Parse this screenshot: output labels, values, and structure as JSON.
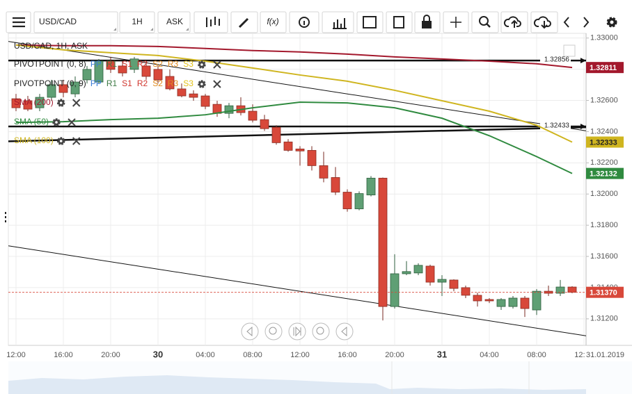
{
  "toolbar": {
    "symbol": "USD/CAD",
    "interval": "1H",
    "price_side": "ASK",
    "function": "f(x)"
  },
  "chart_data": {
    "type": "candlestick",
    "title": "USD/CAD, 1H, ASK",
    "categories": [
      "12:00",
      null,
      null,
      null,
      "16:00",
      null,
      null,
      null,
      "20:00",
      null,
      null,
      null,
      "30",
      null,
      null,
      null,
      "04:00",
      null,
      null,
      null,
      "08:00",
      null,
      null,
      null,
      "12:00",
      null,
      null,
      null,
      "16:00",
      null,
      null,
      null,
      "20:00",
      null,
      null,
      null,
      "31",
      null,
      null,
      null,
      "04:00",
      null,
      null,
      null,
      "08:00",
      null,
      null,
      null,
      "12:00"
    ],
    "open": [
      1.32611,
      1.32598,
      1.32553,
      1.3262,
      1.32701,
      1.32642,
      1.32732,
      1.32718,
      1.32852,
      1.32821,
      1.32799,
      1.32821,
      1.32799,
      1.32754,
      1.32674,
      1.32642,
      1.32629,
      1.32575,
      1.32517,
      1.32566,
      1.32531,
      1.32477,
      1.32428,
      1.32334,
      1.32289,
      1.3228,
      1.32182,
      1.32106,
      1.32012,
      1.31905,
      1.31994,
      1.32102,
      1.31279,
      1.31489,
      1.31494,
      1.31538,
      1.31435,
      1.31449,
      1.314,
      1.31351,
      1.31324,
      1.31279,
      1.31279,
      1.31333,
      1.31257,
      1.31377,
      1.31364,
      1.31404,
      null
    ],
    "high": [
      1.32642,
      1.32629,
      1.32642,
      1.32732,
      1.32732,
      1.32754,
      1.32821,
      1.32866,
      1.32879,
      1.32852,
      1.32879,
      1.32852,
      1.32821,
      1.32799,
      1.32709,
      1.32665,
      1.32642,
      1.32598,
      1.32584,
      1.3262,
      1.32575,
      1.32508,
      1.32441,
      1.32352,
      1.32307,
      1.32307,
      1.32271,
      1.32173,
      1.3203,
      1.32017,
      1.32115,
      1.32106,
      1.31614,
      1.3157,
      1.31556,
      1.31547,
      1.3148,
      1.31453,
      1.31413,
      1.31368,
      1.31333,
      1.31333,
      1.31346,
      1.31346,
      1.31391,
      1.31413,
      1.31449,
      1.31409,
      null
    ],
    "low": [
      1.32531,
      1.32531,
      1.32531,
      1.32598,
      1.3262,
      1.3262,
      1.32709,
      1.32709,
      1.32776,
      1.32754,
      1.32776,
      1.32732,
      1.32709,
      1.32665,
      1.3262,
      1.32598,
      1.32544,
      1.32495,
      1.32486,
      1.32504,
      1.32459,
      1.32405,
      1.32316,
      1.32271,
      1.32182,
      1.32151,
      1.32075,
      1.31994,
      1.31887,
      1.31896,
      1.31985,
      1.3119,
      1.31266,
      1.3148,
      1.3148,
      1.31413,
      1.31346,
      1.31377,
      1.31333,
      1.31279,
      1.31301,
      1.31257,
      1.31266,
      1.31212,
      1.31225,
      1.31346,
      1.31346,
      1.31364,
      null
    ],
    "close": [
      1.32553,
      1.32544,
      1.3262,
      1.32701,
      1.32651,
      1.32718,
      1.32799,
      1.32852,
      1.32799,
      1.32776,
      1.32866,
      1.32754,
      1.32732,
      1.32674,
      1.32629,
      1.3262,
      1.32562,
      1.32517,
      1.32566,
      1.32522,
      1.32473,
      1.32419,
      1.32329,
      1.3228,
      1.32276,
      1.32182,
      1.32102,
      1.32012,
      1.31905,
      1.32003,
      1.32102,
      1.31279,
      1.31489,
      1.31503,
      1.31543,
      1.31435,
      1.31453,
      1.31395,
      1.31351,
      1.31315,
      1.31315,
      1.31324,
      1.31333,
      1.31266,
      1.31377,
      1.31364,
      1.31404,
      1.3137,
      null
    ],
    "up_color": "#5f9f74",
    "down_color": "#d8483a",
    "ylim": [
      1.3103,
      1.3303
    ],
    "yticks": [
      {
        "value": 1.33,
        "label": "1.33000"
      },
      {
        "value": 1.328,
        "label": "1.32800"
      },
      {
        "value": 1.326,
        "label": "1.32600"
      },
      {
        "value": 1.324,
        "label": "1.32400"
      },
      {
        "value": 1.322,
        "label": "1.32200"
      },
      {
        "value": 1.32,
        "label": "1.32000"
      },
      {
        "value": 1.318,
        "label": "1.31800"
      },
      {
        "value": 1.316,
        "label": "1.31600"
      },
      {
        "value": 1.314,
        "label": "1.31400"
      },
      {
        "value": 1.312,
        "label": "1.31200"
      }
    ],
    "grid": true,
    "series": [
      {
        "name": "SMA (200)",
        "color": "#a3182c",
        "x": [
          0,
          4,
          8,
          12,
          16,
          20,
          24,
          28,
          32,
          36,
          40,
          44,
          47
        ],
        "values": [
          1.32955,
          1.32951,
          1.32951,
          1.32946,
          1.32933,
          1.3292,
          1.32911,
          1.32897,
          1.32879,
          1.32866,
          1.32852,
          1.32835,
          1.32811
        ]
      },
      {
        "name": "SMA (50)",
        "color": "#2f8a3f",
        "x": [
          0,
          4,
          8,
          12,
          16,
          20,
          24,
          28,
          32,
          36,
          40,
          44,
          47
        ],
        "values": [
          1.32459,
          1.32464,
          1.32477,
          1.32486,
          1.32508,
          1.32553,
          1.32589,
          1.32584,
          1.32553,
          1.32486,
          1.32374,
          1.3224,
          1.32132
        ]
      },
      {
        "name": "SMA (100)",
        "color": "#cfb51f",
        "x": [
          0,
          4,
          8,
          12,
          16,
          20,
          24,
          28,
          32,
          36,
          40,
          44,
          47
        ],
        "values": [
          1.32955,
          1.32924,
          1.32906,
          1.32888,
          1.32852,
          1.32808,
          1.32763,
          1.32723,
          1.32665,
          1.32598,
          1.32531,
          1.32441,
          1.32333
        ]
      }
    ],
    "indicators": [
      {
        "label": "PIVOTPOINT (0, 8)",
        "lines": [
          {
            "name": "PP",
            "color": "#3b7dd8"
          },
          {
            "name": "R1",
            "color": "#3d7a45"
          },
          {
            "name": "S1",
            "color": "#d0342c"
          },
          {
            "name": "R2",
            "color": "#d0342c"
          },
          {
            "name": "S2",
            "color": "#e08a1e"
          },
          {
            "name": "R3",
            "color": "#e08a1e"
          },
          {
            "name": "S3",
            "color": "#e3c21a"
          }
        ]
      },
      {
        "label": "PIVOTPOINT (0, 9)",
        "lines": [
          {
            "name": "PP",
            "color": "#3b7dd8"
          },
          {
            "name": "R1",
            "color": "#3d7a45"
          },
          {
            "name": "S1",
            "color": "#d0342c"
          },
          {
            "name": "R2",
            "color": "#d0342c"
          },
          {
            "name": "S2",
            "color": "#e08a1e"
          },
          {
            "name": "R3",
            "color": "#e08a1e"
          },
          {
            "name": "S3",
            "color": "#e3c21a"
          }
        ]
      }
    ],
    "levels": [
      1.32856,
      1.32433
    ],
    "trendlines": [
      [
        1.32978,
        1.32405
      ],
      [
        1.31668,
        1.31091
      ],
      [
        1.32338,
        1.32428
      ]
    ],
    "last_price": {
      "value": 1.3137,
      "label": "1.31370",
      "color": "#d8483a"
    },
    "date_label": "31.01.2019"
  }
}
